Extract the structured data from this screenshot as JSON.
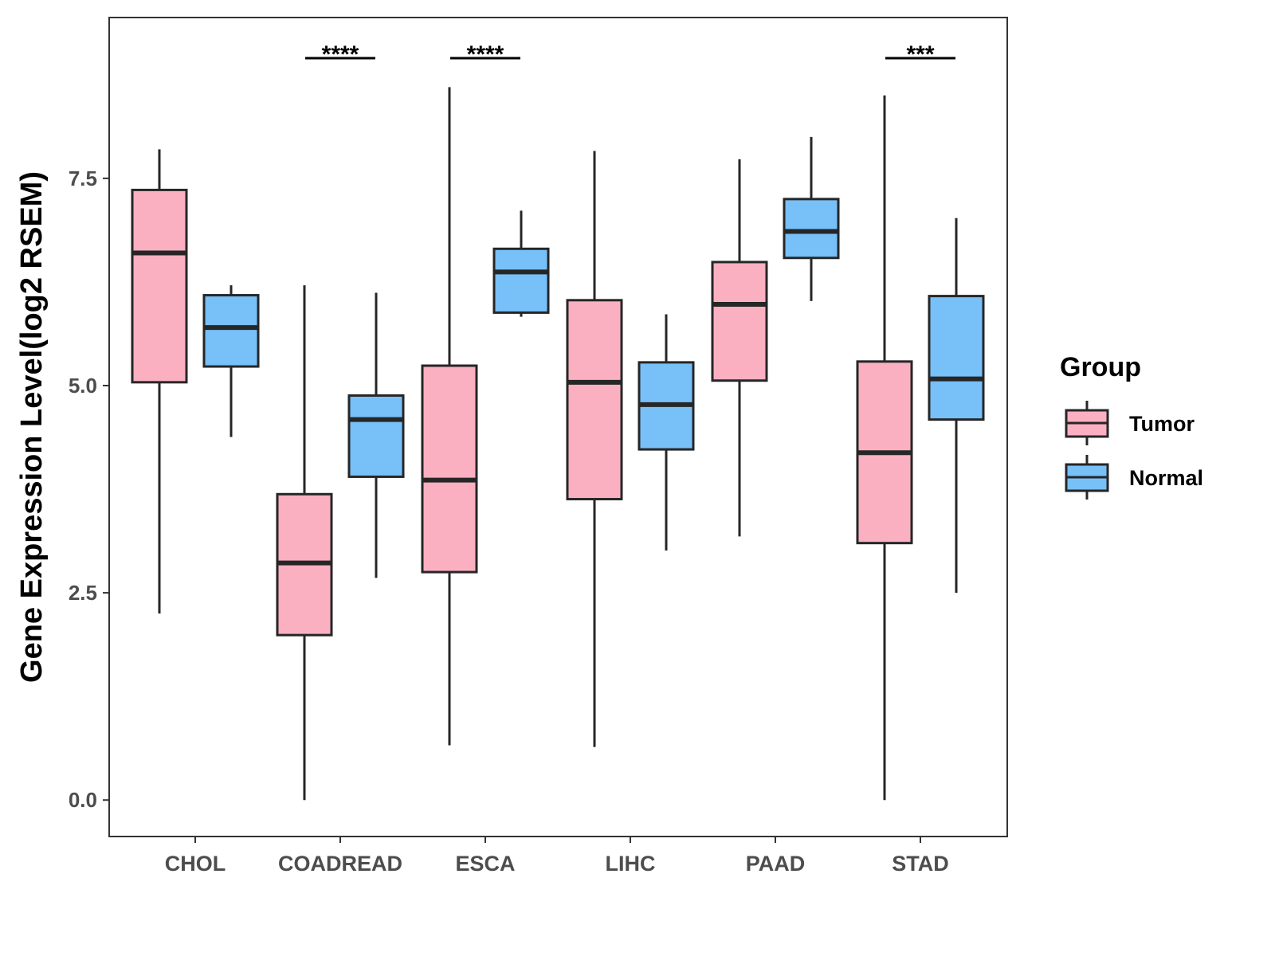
{
  "chart_data": {
    "type": "boxplot",
    "title": "",
    "xlabel": "",
    "ylabel": "Gene Expression Level(log2 RSEM)",
    "ylim": [
      -0.44,
      9.44
    ],
    "yticks": [
      0.0,
      2.5,
      5.0,
      7.5
    ],
    "ytick_labels": [
      "0.0",
      "2.5",
      "5.0",
      "7.5"
    ],
    "grid": false,
    "legend": {
      "title": "Group",
      "placement": "right",
      "entries": [
        "Tumor",
        "Normal"
      ]
    },
    "colors": {
      "Tumor": "#FBB0C2",
      "Normal": "#77C0F8",
      "stroke": "#262626"
    },
    "categories": [
      "CHOL",
      "COADREAD",
      "ESCA",
      "LIHC",
      "PAAD",
      "STAD"
    ],
    "series": [
      {
        "name": "Tumor",
        "boxes": [
          {
            "min": 2.25,
            "q1": 5.04,
            "median": 6.6,
            "q3": 7.36,
            "max": 7.85
          },
          {
            "min": 0.0,
            "q1": 1.99,
            "median": 2.86,
            "q3": 3.69,
            "max": 6.21
          },
          {
            "min": 0.66,
            "q1": 2.75,
            "median": 3.86,
            "q3": 5.24,
            "max": 8.6
          },
          {
            "min": 0.64,
            "q1": 3.63,
            "median": 5.04,
            "q3": 6.03,
            "max": 7.83
          },
          {
            "min": 3.18,
            "q1": 5.06,
            "median": 5.98,
            "q3": 6.49,
            "max": 7.73
          },
          {
            "min": 0.0,
            "q1": 3.1,
            "median": 4.19,
            "q3": 5.29,
            "max": 8.5
          }
        ]
      },
      {
        "name": "Normal",
        "boxes": [
          {
            "min": 4.38,
            "q1": 5.23,
            "median": 5.7,
            "q3": 6.09,
            "max": 6.21
          },
          {
            "min": 2.68,
            "q1": 3.9,
            "median": 4.59,
            "q3": 4.88,
            "max": 6.12
          },
          {
            "min": 5.83,
            "q1": 5.88,
            "median": 6.37,
            "q3": 6.65,
            "max": 7.11
          },
          {
            "min": 3.01,
            "q1": 4.23,
            "median": 4.77,
            "q3": 5.28,
            "max": 5.86
          },
          {
            "min": 6.02,
            "q1": 6.54,
            "median": 6.86,
            "q3": 7.25,
            "max": 8.0
          },
          {
            "min": 2.5,
            "q1": 4.59,
            "median": 5.08,
            "q3": 6.08,
            "max": 7.02
          }
        ]
      }
    ],
    "annotations": [
      {
        "category": "COADREAD",
        "label": "****",
        "y": 8.95
      },
      {
        "category": "ESCA",
        "label": "****",
        "y": 8.95
      },
      {
        "category": "STAD",
        "label": "***",
        "y": 8.95
      }
    ]
  }
}
